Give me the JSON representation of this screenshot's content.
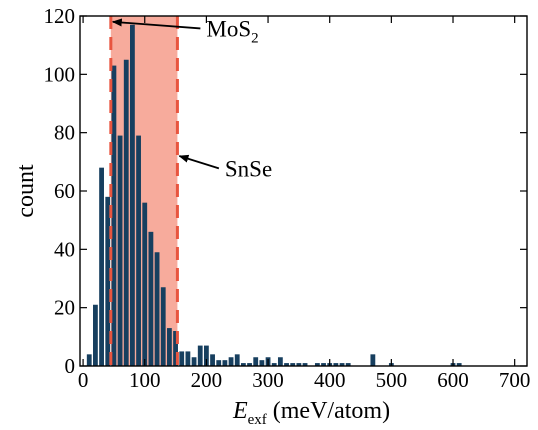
{
  "chart_data": {
    "type": "bar",
    "bin_width": 10,
    "x": [
      10,
      20,
      30,
      40,
      50,
      60,
      70,
      80,
      90,
      100,
      110,
      120,
      130,
      140,
      150,
      160,
      170,
      180,
      190,
      200,
      210,
      220,
      230,
      240,
      250,
      260,
      270,
      280,
      290,
      300,
      310,
      320,
      330,
      340,
      350,
      360,
      370,
      380,
      390,
      400,
      410,
      420,
      430,
      440,
      450,
      460,
      470,
      480,
      490,
      500,
      600,
      610
    ],
    "values": [
      4,
      21,
      68,
      58,
      103,
      79,
      105,
      117,
      79,
      56,
      46,
      39,
      27,
      13,
      12,
      5,
      5,
      3,
      7,
      7,
      4,
      2,
      2,
      3,
      4,
      1,
      1,
      3,
      2,
      3,
      1,
      3,
      1,
      1,
      1,
      1,
      0,
      1,
      1,
      1,
      1,
      1,
      1,
      0,
      0,
      0,
      4,
      0,
      0,
      1,
      1,
      1
    ],
    "xlabel_main": "E",
    "xlabel_sub": "exf",
    "xlabel_units": " (meV/atom)",
    "ylabel": "count",
    "xlim": [
      -5,
      720
    ],
    "ylim": [
      0,
      120
    ],
    "xticks": [
      0,
      100,
      200,
      300,
      400,
      500,
      600,
      700
    ],
    "yticks": [
      0,
      20,
      40,
      60,
      80,
      100,
      120
    ],
    "colors": {
      "bars": "#173f5f",
      "band": "#f7ab9c",
      "band_edges": "#e8553f"
    },
    "band": {
      "from": 45,
      "to": 153
    },
    "annotations": [
      {
        "label": "MoS",
        "sub": "2",
        "points_to_x": 45,
        "points_to_y": 118,
        "text_x": 200,
        "text_y": 113
      },
      {
        "label": "SnSe",
        "sub": "",
        "points_to_x": 153,
        "points_to_y": 72,
        "text_x": 230,
        "text_y": 65
      }
    ]
  }
}
